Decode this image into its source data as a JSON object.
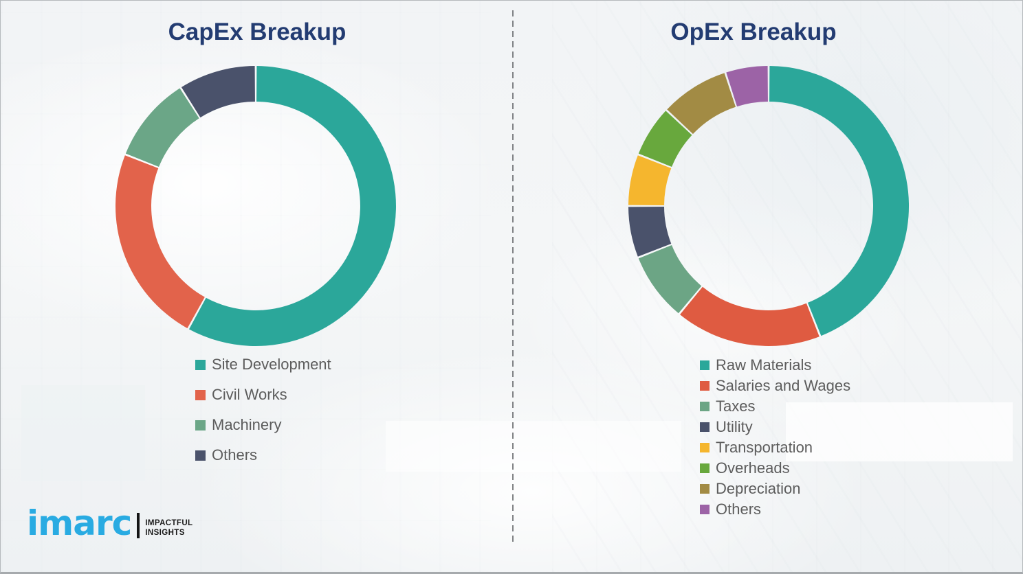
{
  "chart_data": [
    {
      "type": "pie",
      "donut": true,
      "title": "CapEx Breakup",
      "labels": [
        "Site Development",
        "Civil Works",
        "Machinery",
        "Others"
      ],
      "values": [
        58,
        23,
        10,
        9
      ],
      "value_unit": "percent",
      "colors": [
        "#2BA79A",
        "#E2634B",
        "#6BA687",
        "#4A526B"
      ],
      "legend_position": "bottom",
      "start_angle_clock": "12-o-clock",
      "direction": "clockwise"
    },
    {
      "type": "pie",
      "donut": true,
      "title": "OpEx Breakup",
      "labels": [
        "Raw Materials",
        "Salaries and Wages",
        "Taxes",
        "Utility",
        "Transportation",
        "Overheads",
        "Depreciation",
        "Others"
      ],
      "values": [
        44,
        17,
        8,
        6,
        6,
        6,
        8,
        5
      ],
      "value_unit": "percent",
      "colors": [
        "#2BA79A",
        "#DF5B41",
        "#6CA585",
        "#4A526B",
        "#F5B62E",
        "#68A83D",
        "#A28B44",
        "#9C63A6"
      ],
      "legend_position": "bottom",
      "start_angle_clock": "12-o-clock",
      "direction": "clockwise"
    }
  ],
  "branding": {
    "logo_text": "imarc",
    "tagline_line1": "IMPACTFUL",
    "tagline_line2": "INSIGHTS",
    "logo_color": "#29ABE2"
  }
}
